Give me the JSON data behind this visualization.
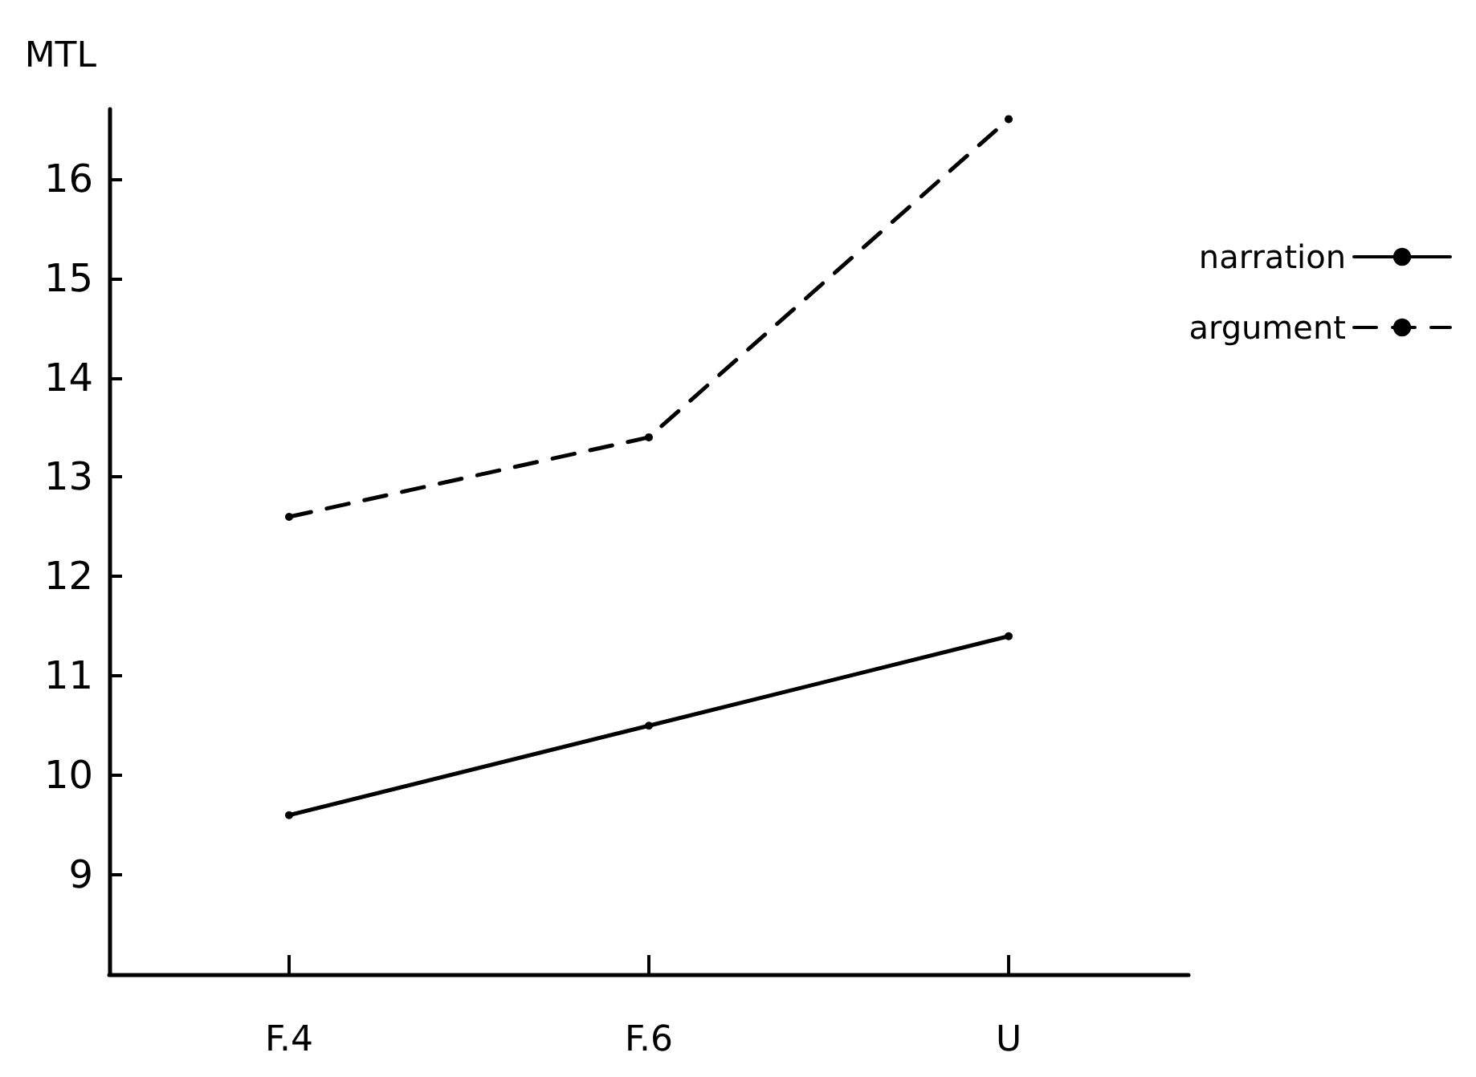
{
  "chart_data": {
    "type": "line",
    "ylabel": "MTL",
    "categories": [
      "F.4",
      "F.6",
      "U"
    ],
    "series": [
      {
        "name": "narration",
        "color": "#000000",
        "line_style": "solid",
        "values": [
          9.6,
          10.5,
          11.4
        ]
      },
      {
        "name": "argument",
        "color": "#000000",
        "line_style": "dashed",
        "values": [
          12.6,
          13.4,
          16.6
        ]
      }
    ],
    "ylim": [
      8,
      16.7
    ],
    "yticks": [
      9,
      10,
      11,
      12,
      13,
      14,
      15,
      16
    ],
    "grid": false,
    "legend": "right",
    "marker": "circle"
  }
}
